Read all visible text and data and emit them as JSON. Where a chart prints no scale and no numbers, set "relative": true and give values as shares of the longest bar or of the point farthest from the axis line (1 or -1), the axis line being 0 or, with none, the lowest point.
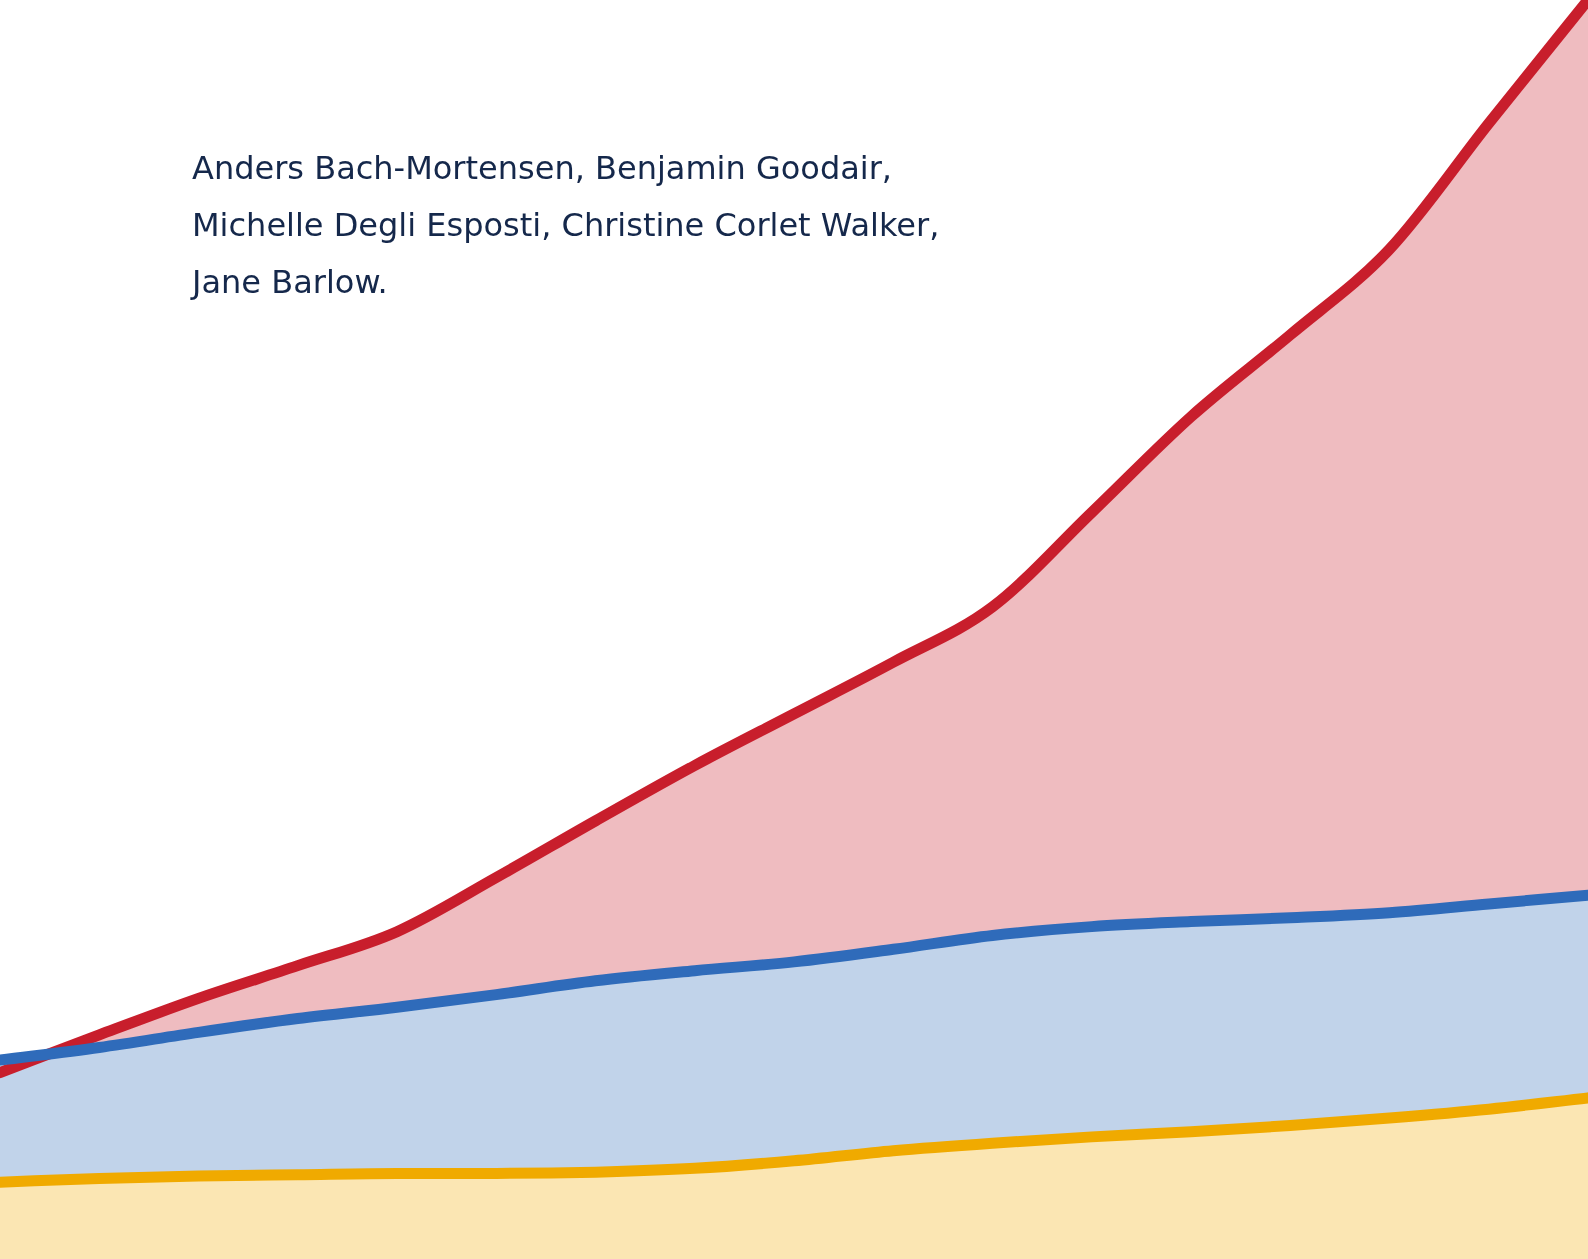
{
  "chart_data": {
    "type": "area",
    "relative": true,
    "legend": false,
    "grid": false,
    "tick_labels": false,
    "annotations": [
      "Anders Bach-Mortensen, Benjamin Goodair, Michelle Degli Esposti, Christine Corlet Walker, Jane Barlow."
    ],
    "categories": [
      null,
      null,
      null,
      null,
      null,
      null,
      null,
      null,
      null,
      null,
      null,
      null,
      null,
      null,
      null,
      null,
      null
    ],
    "series": [
      {
        "color": "#c81e2c",
        "values": [
          0.148,
          0.178,
          0.207,
          0.233,
          0.26,
          0.303,
          0.348,
          0.392,
          0.433,
          0.474,
          0.518,
          0.593,
          0.669,
          0.734,
          0.802,
          0.902,
          1
        ]
      },
      {
        "color": "#2f6bba",
        "values": [
          0.158,
          0.168,
          0.18,
          0.191,
          0.2,
          0.21,
          0.221,
          0.229,
          0.236,
          0.246,
          0.257,
          0.264,
          0.268,
          0.271,
          0.275,
          0.282,
          0.289
        ]
      },
      {
        "color": "#f0aa00",
        "values": [
          0.061,
          0.064,
          0.066,
          0.067,
          0.068,
          0.068,
          0.069,
          0.072,
          0.078,
          0.086,
          0.092,
          0.097,
          0.101,
          0.106,
          0.112,
          0.119,
          0.128
        ]
      }
    ]
  }
}
